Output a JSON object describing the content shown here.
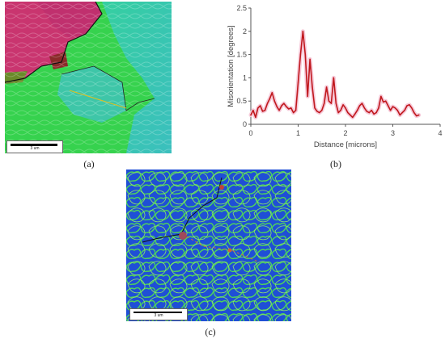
{
  "panels": {
    "a": {
      "caption": "(a)",
      "scalebar_label": "3 um"
    },
    "b": {
      "caption": "(b)"
    },
    "c": {
      "caption": "(c)",
      "scalebar_label": "3 um"
    }
  },
  "colors": {
    "line": "#c0181d",
    "halo": "#f6c9d8",
    "axis": "#555555",
    "map_a_pink": "#c8326e",
    "map_a_green": "#33d44a",
    "map_a_teal": "#3ec79a",
    "map_c_blue": "#1f4fd6",
    "map_c_green": "#4fd35a"
  },
  "chart_data": {
    "type": "line",
    "title": "",
    "xlabel": "Distance [microns]",
    "ylabel": "Misorientation [degrees]",
    "xlim": [
      0,
      4
    ],
    "ylim": [
      0,
      2.5
    ],
    "xticks": [
      "0",
      "1",
      "2",
      "3",
      "4"
    ],
    "yticks": [
      "0",
      "0.5",
      "1",
      "1.5",
      "2",
      "2.5"
    ],
    "grid": false,
    "series": [
      {
        "name": "",
        "x": [
          0.0,
          0.05,
          0.1,
          0.15,
          0.2,
          0.25,
          0.3,
          0.35,
          0.4,
          0.45,
          0.5,
          0.55,
          0.6,
          0.65,
          0.7,
          0.75,
          0.8,
          0.85,
          0.9,
          0.95,
          1.0,
          1.05,
          1.1,
          1.15,
          1.2,
          1.25,
          1.3,
          1.35,
          1.4,
          1.45,
          1.5,
          1.55,
          1.6,
          1.65,
          1.7,
          1.75,
          1.8,
          1.85,
          1.9,
          1.95,
          2.0,
          2.05,
          2.1,
          2.15,
          2.2,
          2.25,
          2.3,
          2.35,
          2.4,
          2.45,
          2.5,
          2.55,
          2.6,
          2.65,
          2.7,
          2.75,
          2.8,
          2.85,
          2.9,
          2.95,
          3.0,
          3.05,
          3.1,
          3.15,
          3.2,
          3.25,
          3.3,
          3.35,
          3.4,
          3.45,
          3.5,
          3.55
        ],
        "y": [
          0.2,
          0.3,
          0.15,
          0.35,
          0.4,
          0.28,
          0.3,
          0.45,
          0.55,
          0.68,
          0.5,
          0.38,
          0.3,
          0.4,
          0.45,
          0.38,
          0.33,
          0.35,
          0.25,
          0.3,
          0.9,
          1.5,
          2.0,
          1.5,
          0.6,
          1.4,
          0.8,
          0.35,
          0.28,
          0.25,
          0.3,
          0.45,
          0.8,
          0.5,
          0.45,
          1.0,
          0.45,
          0.25,
          0.3,
          0.42,
          0.35,
          0.25,
          0.2,
          0.15,
          0.22,
          0.3,
          0.4,
          0.45,
          0.35,
          0.28,
          0.25,
          0.3,
          0.22,
          0.25,
          0.35,
          0.6,
          0.48,
          0.5,
          0.4,
          0.3,
          0.38,
          0.35,
          0.3,
          0.2,
          0.25,
          0.3,
          0.4,
          0.42,
          0.35,
          0.25,
          0.18,
          0.2
        ]
      }
    ]
  }
}
